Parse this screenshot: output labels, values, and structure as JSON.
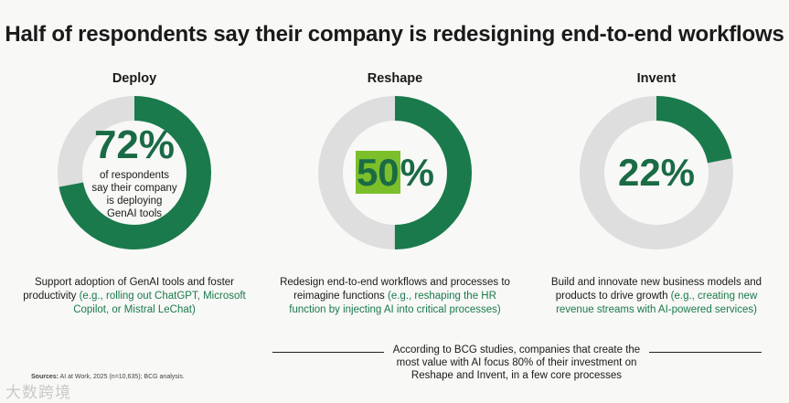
{
  "title": "Half of respondents say their company is redesigning end-to-end workflows",
  "colors": {
    "accent": "#1a7a4c",
    "track": "#dedede",
    "highlight": "#7bbf2a"
  },
  "chart_data": {
    "type": "pie",
    "variant": "donut",
    "title": "Half of respondents say their company is redesigning end-to-end workflows",
    "items": [
      {
        "label": "Deploy",
        "value": 72,
        "value_text": "72%",
        "caption": [
          "of respondents",
          "say their company",
          "is deploying",
          "GenAI tools"
        ],
        "desc_plain": "Support adoption of GenAI tools and foster productivity ",
        "desc_example": "(e.g., rolling out ChatGPT, Microsoft Copilot, or Mistral LeChat)"
      },
      {
        "label": "Reshape",
        "value": 50,
        "value_text": "50%",
        "value_num": "50",
        "value_sign": "%",
        "caption": [],
        "desc_plain": "Redesign end-to-end workflows and processes to reimagine functions ",
        "desc_example": "(e.g., reshaping the HR function by injecting AI into critical processes)"
      },
      {
        "label": "Invent",
        "value": 22,
        "value_text": "22%",
        "caption": [],
        "desc_plain": "Build and innovate new business models and products to drive growth ",
        "desc_example": "(e.g., creating new revenue streams with AI-powered services)"
      }
    ]
  },
  "note": "According to BCG studies, companies that create the most value with AI focus 80% of their investment on Reshape and Invent, in a few core processes",
  "source": {
    "label": "Sources:",
    "text": " AI at Work, 2025 (n=10,635); BCG analysis."
  },
  "watermark": "大数跨境"
}
